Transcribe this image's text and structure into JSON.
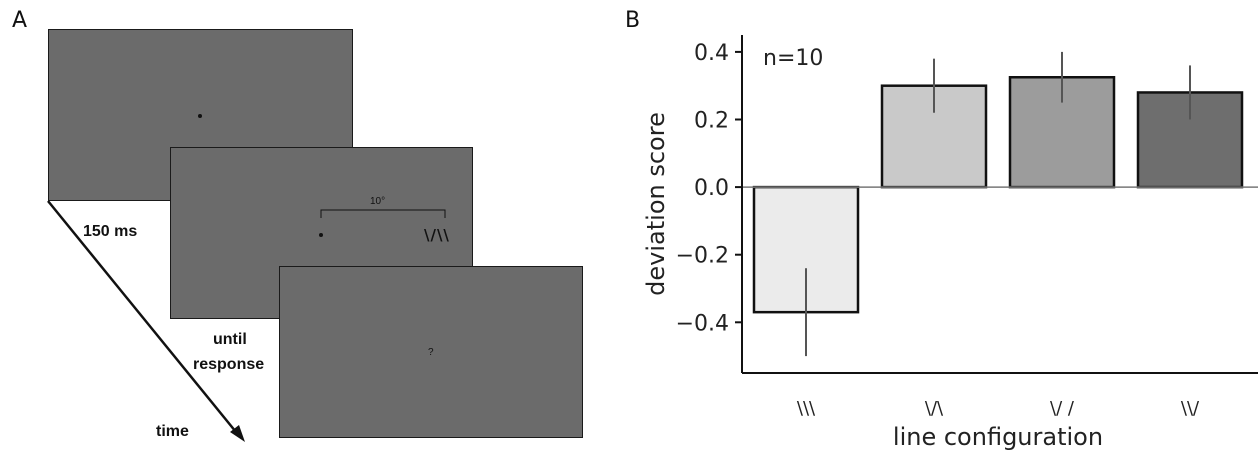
{
  "panel_a": {
    "letter": "A",
    "label_150ms": "150 ms",
    "label_until": "until",
    "label_response": "response",
    "label_time": "time",
    "degree_label": "10°",
    "stimulus": "\\/\\\\",
    "question_mark": "?"
  },
  "panel_b": {
    "letter": "B"
  },
  "chart_data": {
    "type": "bar",
    "annotation": "n=10",
    "xlabel": "line configuration",
    "ylabel": "deviation score",
    "categories": [
      "\\\\\\",
      "\\/\\",
      "\\/ /",
      "\\\\/"
    ],
    "values": [
      -0.37,
      0.3,
      0.325,
      0.28
    ],
    "errors": [
      0.13,
      0.08,
      0.075,
      0.08
    ],
    "bar_colors": [
      "#ebebeb",
      "#c9c9c9",
      "#9c9c9c",
      "#6e6e6e"
    ],
    "ylim": [
      -0.55,
      0.45
    ],
    "yticks": [
      -0.4,
      -0.2,
      0.0,
      0.2,
      0.4
    ],
    "ytick_labels": [
      "−0.4",
      "−0.2",
      "0.0",
      "0.2",
      "0.4"
    ],
    "grid": false
  }
}
